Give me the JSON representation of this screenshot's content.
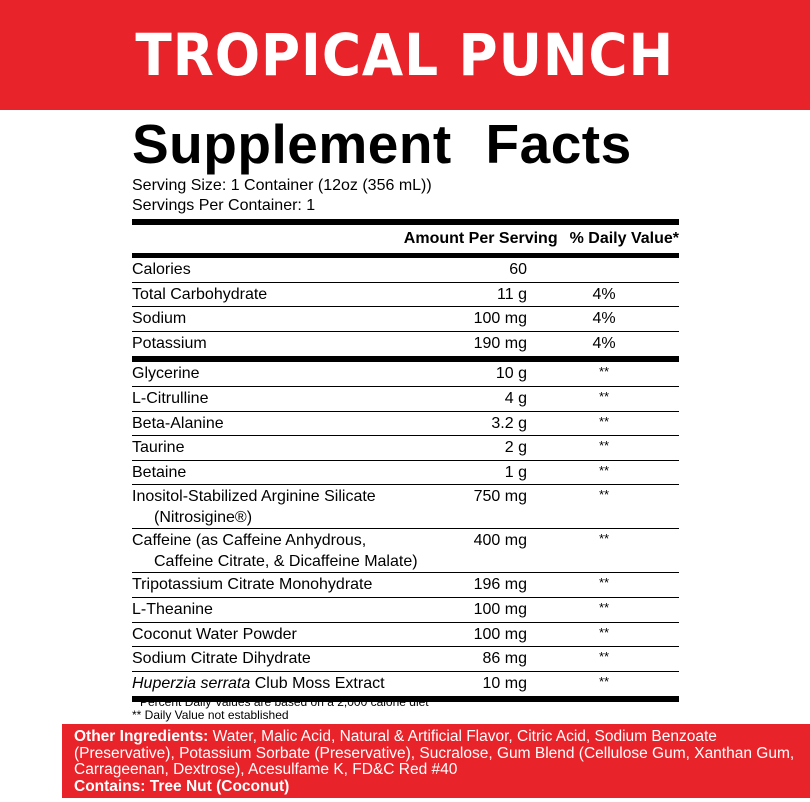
{
  "banner": "TROPICAL PUNCH",
  "title": "Supplement Facts",
  "serving_size": "Serving Size: 1 Container (12oz (356 mL))",
  "servings_per_container": "Servings Per Container: 1",
  "headers": {
    "amount": "Amount Per Serving",
    "dv": "% Daily Value*"
  },
  "group1": [
    {
      "name": "Calories",
      "amount": "60",
      "dv": ""
    },
    {
      "name": "Total Carbohydrate",
      "amount": "11 g",
      "dv": "4%"
    },
    {
      "name": "Sodium",
      "amount": "100 mg",
      "dv": "4%"
    },
    {
      "name": "Potassium",
      "amount": "190 mg",
      "dv": "4%"
    }
  ],
  "group2": [
    {
      "name": "Glycerine",
      "amount": "10 g",
      "dv": "**"
    },
    {
      "name": "L-Citrulline",
      "amount": "4 g",
      "dv": "**"
    },
    {
      "name": "Beta-Alanine",
      "amount": "3.2 g",
      "dv": "**"
    },
    {
      "name": "Taurine",
      "amount": "2 g",
      "dv": "**"
    },
    {
      "name": "Betaine",
      "amount": "1 g",
      "dv": "**"
    },
    {
      "name": "Inositol-Stabilized Arginine Silicate",
      "name2": "(Nitrosigine®)",
      "amount": "750 mg",
      "dv": "**"
    },
    {
      "name": "Caffeine (as Caffeine Anhydrous,",
      "name2": "Caffeine Citrate, & Dicaffeine Malate)",
      "amount": "400 mg",
      "dv": "**"
    },
    {
      "name": "Tripotassium Citrate Monohydrate",
      "amount": "196 mg",
      "dv": "**"
    },
    {
      "name": "L-Theanine",
      "amount": "100 mg",
      "dv": "**"
    },
    {
      "name": "Coconut Water Powder",
      "amount": "100 mg",
      "dv": "**"
    },
    {
      "name": "Sodium Citrate Dihydrate",
      "amount": "86 mg",
      "dv": "**"
    },
    {
      "name_italic": "Huperzia serrata",
      "name": " Club Moss Extract",
      "amount": "10 mg",
      "dv": "**"
    }
  ],
  "footnotes": [
    "* Percent Daily Values are based on a 2,000 calorie diet",
    "** Daily Value not established"
  ],
  "other_ingredients": {
    "label": "Other Ingredients:",
    "text": " Water, Malic Acid, Natural & Artificial Flavor, Citric Acid, Sodium Benzoate (Preservative), Potassium Sorbate (Preservative), Sucralose, Gum Blend (Cellulose Gum, Xanthan Gum, Carrageenan, Dextrose), Acesulfame K, FD&C Red #40"
  },
  "contains": {
    "label": "Contains:",
    "text": "Tree Nut (Coconut)"
  },
  "colors": {
    "brand_red": "#e8232a"
  }
}
